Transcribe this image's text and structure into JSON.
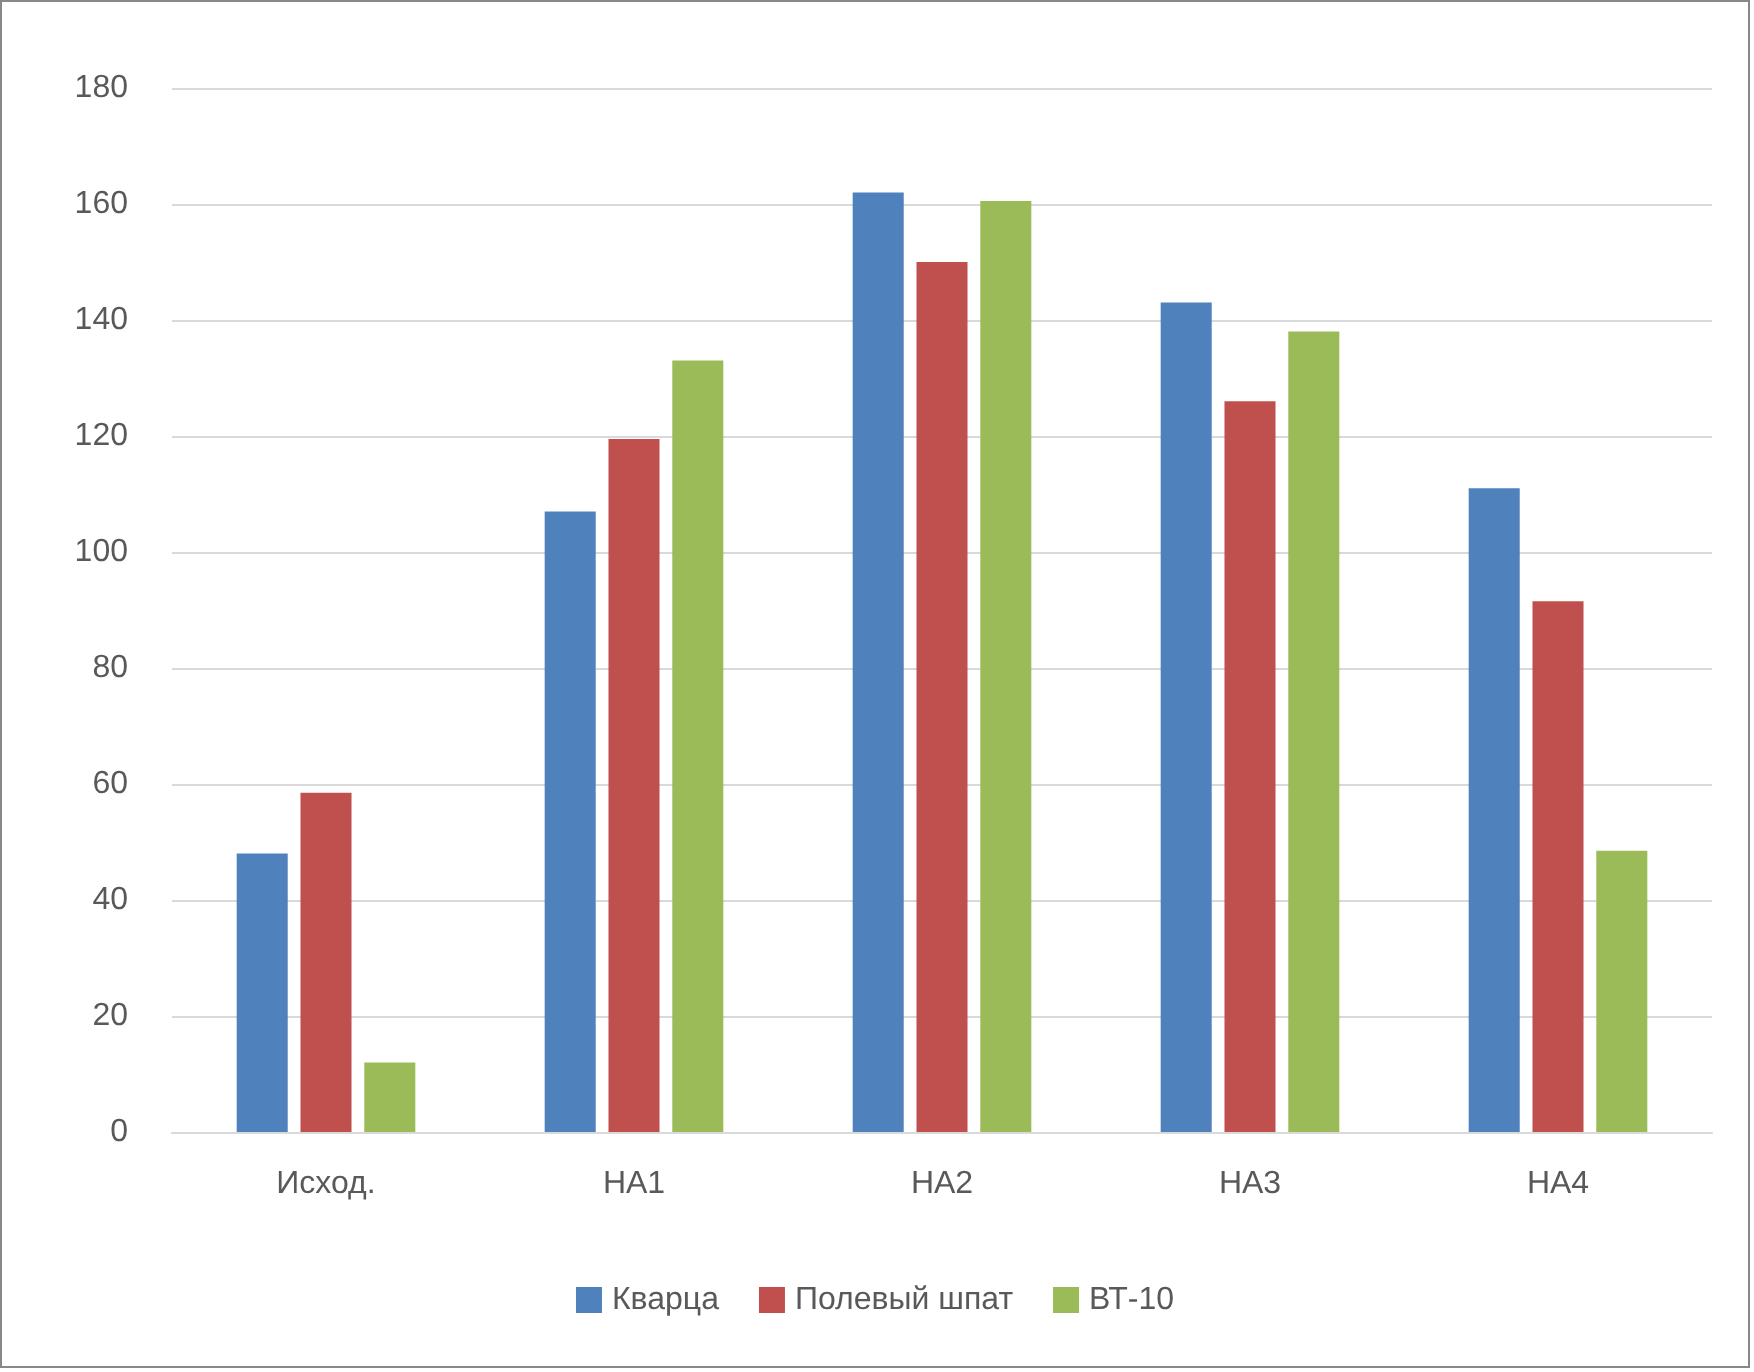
{
  "chart_data": {
    "type": "bar",
    "categories": [
      "Исход.",
      "НА1",
      "НА2",
      "НА3",
      "НА4"
    ],
    "series": [
      {
        "name": "Кварца",
        "color": "#4f81bd",
        "values": [
          48,
          107,
          162,
          143,
          111
        ]
      },
      {
        "name": "Полевый шпат",
        "color": "#c0504d",
        "values": [
          58.5,
          119.5,
          150,
          126,
          91.5
        ]
      },
      {
        "name": "ВТ-10",
        "color": "#9bbb59",
        "values": [
          12,
          133,
          160.5,
          138,
          48.5
        ]
      }
    ],
    "ylim": [
      0,
      180
    ],
    "yticks": [
      0,
      20,
      40,
      60,
      80,
      100,
      120,
      140,
      160,
      180
    ],
    "grid": "y",
    "legend": "bottom"
  }
}
